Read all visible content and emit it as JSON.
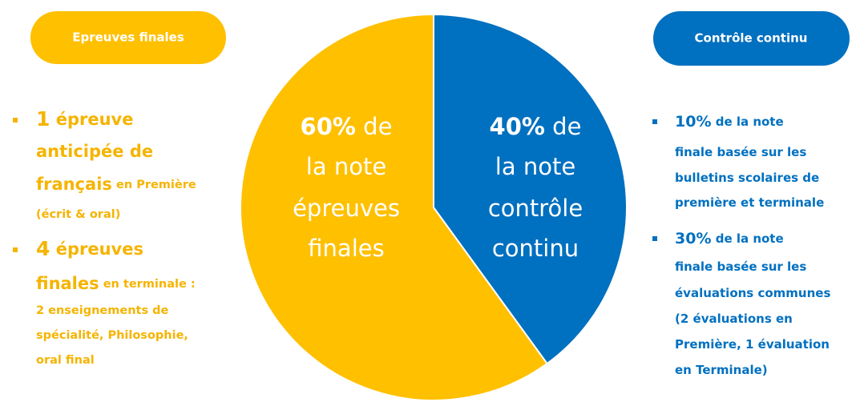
{
  "chart_data": {
    "type": "pie",
    "values": [
      60,
      40
    ],
    "value_labels": [
      "60%",
      "40%"
    ],
    "colors": [
      "#FFC000",
      "#0070C0"
    ],
    "labels": [
      [
        " de",
        "la note",
        "épreuves",
        "finales"
      ],
      [
        " de",
        "la note",
        "contrôle",
        "continu"
      ]
    ]
  },
  "left_panel": {
    "title": "Epreuves finales",
    "color": "#F5B400",
    "items": [
      {
        "lines": [
          [
            {
              "text": "1",
              "strong": true
            },
            {
              "text": " épreuve",
              "strong": true
            }
          ],
          [
            {
              "text": "anticipée de",
              "strong": true
            }
          ],
          [
            {
              "text": "français",
              "strong": true
            },
            {
              "text": " en Première",
              "strong": false
            }
          ],
          [
            {
              "text": "(écrit & oral)",
              "strong": false
            }
          ]
        ]
      },
      {
        "lines": [
          [
            {
              "text": "4",
              "strong": true
            },
            {
              "text": " épreuves",
              "strong": true
            }
          ],
          [
            {
              "text": "finales",
              "strong": true
            },
            {
              "text": " en terminale :",
              "strong": false
            }
          ],
          [
            {
              "text": "2 enseignements de",
              "strong": false
            }
          ],
          [
            {
              "text": "spécialité, Philosophie,",
              "strong": false
            }
          ],
          [
            {
              "text": "oral final",
              "strong": false
            }
          ]
        ]
      }
    ]
  },
  "right_panel": {
    "title": "Contrôle continu",
    "color": "#0070C0",
    "items": [
      {
        "lines": [
          [
            {
              "text": "10%",
              "strong": true
            },
            {
              "text": " de la note",
              "strong": false
            }
          ],
          [
            {
              "text": "finale basée sur les",
              "strong": false
            }
          ],
          [
            {
              "text": "bulletins scolaires de",
              "strong": false
            }
          ],
          [
            {
              "text": "première et terminale",
              "strong": false
            }
          ]
        ]
      },
      {
        "lines": [
          [
            {
              "text": "30%",
              "strong": true
            },
            {
              "text": " de la note",
              "strong": false
            }
          ],
          [
            {
              "text": "finale basée sur les",
              "strong": false
            }
          ],
          [
            {
              "text": "évaluations communes",
              "strong": false
            }
          ],
          [
            {
              "text": "(2 évaluations en",
              "strong": false
            }
          ],
          [
            {
              "text": "Première, 1 évaluation",
              "strong": false
            }
          ],
          [
            {
              "text": "en Terminale)",
              "strong": false
            }
          ]
        ]
      }
    ]
  }
}
